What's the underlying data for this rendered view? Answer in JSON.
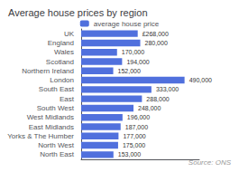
{
  "chart_data": {
    "type": "bar",
    "orientation": "horizontal",
    "title": "Average house prices by region",
    "categories": [
      "North East",
      "North West",
      "Yorks & The Humber",
      "East Midlands",
      "West Midlands",
      "South West",
      "East",
      "South East",
      "London",
      "Northern Ireland",
      "Scotland",
      "Wales",
      "England",
      "UK"
    ],
    "series": [
      {
        "name": "average house price",
        "values": [
          153000,
          175000,
          177000,
          187000,
          196000,
          248000,
          288000,
          333000,
          490000,
          152000,
          194000,
          170000,
          280000,
          268000
        ],
        "value_labels": [
          "153,000",
          "175,000",
          "177,000",
          "187,000",
          "196,000",
          "248,000",
          "288,000",
          "333,000",
          "490,000",
          "152,000",
          "194,000",
          "170,000",
          "280,000",
          "£268,000"
        ]
      }
    ],
    "xlim": [
      0,
      560000
    ],
    "data_labels": true,
    "tick_labels": "y",
    "grid": false,
    "legend": "top",
    "annotations": [
      "Source: ONS"
    ]
  }
}
